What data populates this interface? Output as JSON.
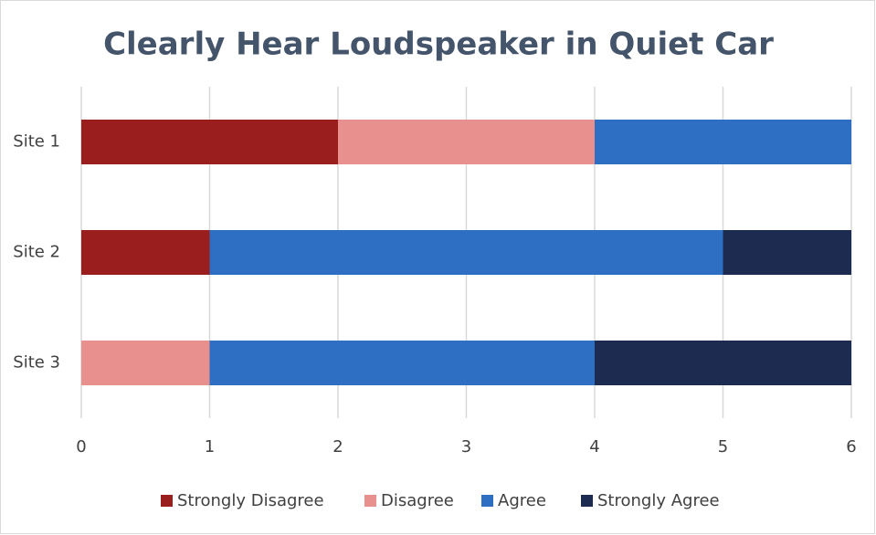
{
  "chart_data": {
    "type": "stacked-bar",
    "orientation": "horizontal",
    "title": "Clearly Hear Loudspeaker in Quiet Car",
    "categories": [
      "Site 1",
      "Site 2",
      "Site 3"
    ],
    "series": [
      {
        "name": "Strongly Disagree",
        "color": "#9b1e1e",
        "values": [
          2,
          1,
          0
        ]
      },
      {
        "name": "Disagree",
        "color": "#e8908e",
        "values": [
          2,
          0,
          1
        ]
      },
      {
        "name": "Agree",
        "color": "#2e6fc4",
        "values": [
          2,
          4,
          3
        ]
      },
      {
        "name": "Strongly Agree",
        "color": "#1c2b4f",
        "values": [
          0,
          1,
          2
        ]
      }
    ],
    "xlim": [
      0,
      6
    ],
    "xticks": [
      0,
      1,
      2,
      3,
      4,
      5,
      6
    ],
    "grid": true,
    "legend": "bottom"
  }
}
